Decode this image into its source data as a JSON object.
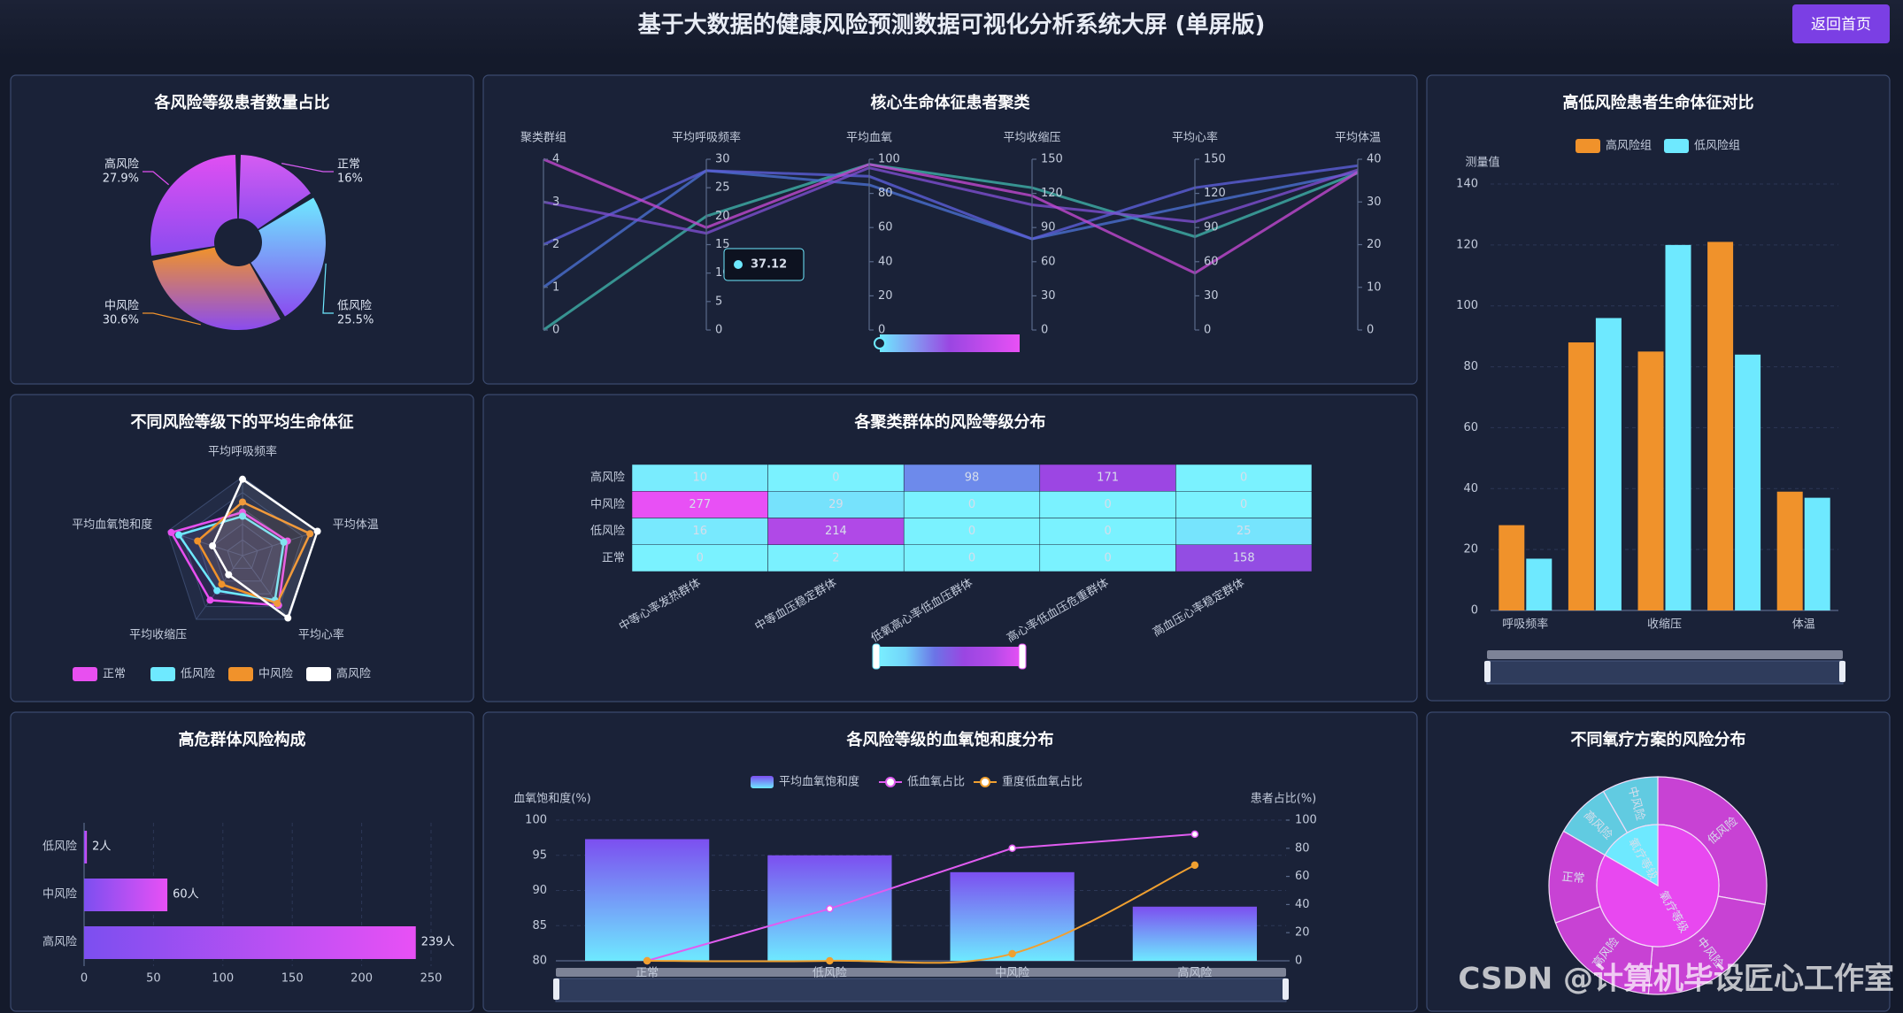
{
  "header": {
    "title": "基于大数据的健康风险预测数据可视化分析系统大屏 (单屏版)",
    "button": "返回首页"
  },
  "watermark": "CSDN @计算机毕设匠心工作室",
  "chart_data": [
    {
      "type": "pie",
      "title": "各风险等级患者数量占比",
      "categories": [
        "正常",
        "低风险",
        "中风险",
        "高风险"
      ],
      "values": [
        16,
        25.5,
        30.6,
        27.9
      ],
      "value_labels": [
        "16%",
        "25.5%",
        "30.6%",
        "27.9%"
      ],
      "colors": [
        "#d65cf2",
        "#6ee9ff",
        "#f0922b",
        "#e04ff2"
      ]
    },
    {
      "type": "parallel",
      "title": "核心生命体征患者聚类",
      "axes": [
        {
          "name": "聚类群组",
          "lim": [
            0,
            4
          ],
          "ticks": [
            0,
            1,
            2,
            3,
            4
          ]
        },
        {
          "name": "平均呼吸频率",
          "lim": [
            0,
            30
          ],
          "ticks": [
            0,
            5,
            10,
            15,
            20,
            25,
            30
          ]
        },
        {
          "name": "平均血氧",
          "lim": [
            0,
            100
          ],
          "ticks": [
            0,
            20,
            40,
            60,
            80,
            100
          ]
        },
        {
          "name": "平均收缩压",
          "lim": [
            0,
            150
          ],
          "ticks": [
            0,
            30,
            60,
            90,
            120,
            150
          ]
        },
        {
          "name": "平均心率",
          "lim": [
            0,
            150
          ],
          "ticks": [
            0,
            30,
            60,
            90,
            120,
            150
          ]
        },
        {
          "name": "平均体温",
          "lim": [
            0,
            40
          ],
          "ticks": [
            0,
            10,
            20,
            30,
            40
          ]
        }
      ],
      "series": [
        {
          "color": "#3fb0a8",
          "values": [
            0,
            20,
            97,
            125,
            82,
            36.8
          ]
        },
        {
          "color": "#4a6fd0",
          "values": [
            1,
            28,
            85,
            80,
            110,
            37
          ]
        },
        {
          "color": "#5b5fd8",
          "values": [
            2,
            28,
            90,
            80,
            125,
            38.5
          ]
        },
        {
          "color": "#7d4fd0",
          "values": [
            3,
            17,
            95,
            110,
            95,
            37.5
          ]
        },
        {
          "color": "#c048d0",
          "values": [
            4,
            18,
            97,
            118,
            50,
            37
          ]
        }
      ],
      "tooltip_value": 37.12
    },
    {
      "type": "bar",
      "title": "高低风险患者生命体征对比",
      "y_label": "测量值",
      "categories": [
        "呼吸频率",
        null,
        "收缩压",
        null,
        "体温"
      ],
      "series": [
        {
          "name": "高风险组",
          "color": "#f0922b",
          "values": [
            28,
            88,
            85,
            121,
            39
          ]
        },
        {
          "name": "低风险组",
          "color": "#6ee9ff",
          "values": [
            17,
            96,
            120,
            84,
            37
          ]
        }
      ],
      "ylim": [
        0,
        140
      ],
      "yticks": [
        0,
        20,
        40,
        60,
        80,
        100,
        120,
        140
      ],
      "grid": true
    },
    {
      "type": "radar",
      "title": "不同风险等级下的平均生命体征",
      "indicators": [
        "平均呼吸频率",
        "平均体温",
        "平均心率",
        "平均收缩压",
        "平均血氧饱和度"
      ],
      "rlim": [
        0,
        100
      ],
      "series": [
        {
          "name": "正常",
          "color": "#e84ff0",
          "values": [
            55,
            60,
            78,
            70,
            95
          ]
        },
        {
          "name": "低风险",
          "color": "#6ee9ff",
          "values": [
            50,
            55,
            70,
            55,
            85
          ]
        },
        {
          "name": "中风险",
          "color": "#f0922b",
          "values": [
            68,
            90,
            75,
            45,
            60
          ]
        },
        {
          "name": "高风险",
          "color": "#ffffff",
          "values": [
            97,
            100,
            98,
            30,
            40
          ]
        }
      ]
    },
    {
      "type": "heatmap",
      "title": "各聚类群体的风险等级分布",
      "x_categories": [
        "中等心率发热群体",
        "中等血压稳定群体",
        "低氧高心率低血压群体",
        "高心率低血压危重群体",
        "高血压心率稳定群体"
      ],
      "y_categories": [
        "高风险",
        "中风险",
        "低风险",
        "正常"
      ],
      "values": [
        [
          10,
          0,
          98,
          171,
          0
        ],
        [
          277,
          29,
          0,
          0,
          0
        ],
        [
          16,
          214,
          0,
          0,
          25
        ],
        [
          0,
          2,
          0,
          0,
          158
        ]
      ],
      "color_range": [
        "#7af2ff",
        "#72d3fa",
        "#6b74e6",
        "#9a46e2",
        "#b34ae8",
        "#e850f5"
      ]
    },
    {
      "type": "bar",
      "orientation": "horizontal",
      "title": "高危群体风险构成",
      "categories": [
        "低风险",
        "中风险",
        "高风险"
      ],
      "values": [
        2,
        60,
        239
      ],
      "value_labels": [
        "2人",
        "60人",
        "239人"
      ],
      "xlim": [
        0,
        250
      ],
      "xticks": [
        0,
        50,
        100,
        150,
        200,
        250
      ],
      "grid": true
    },
    {
      "type": "combo",
      "title": "各风险等级的血氧饱和度分布",
      "y_label": "血氧饱和度(%)",
      "y2_label": "患者占比(%)",
      "categories": [
        "正常",
        "低风险",
        "中风险",
        "高风险"
      ],
      "series": [
        {
          "name": "平均血氧饱和度",
          "type": "bar",
          "values": [
            97.3,
            95,
            92.6,
            87.7
          ]
        },
        {
          "name": "低血氧占比",
          "type": "line",
          "axis": "y2",
          "color": "#e05cf0",
          "values": [
            0,
            37,
            80,
            90
          ]
        },
        {
          "name": "重度低血氧占比",
          "type": "line",
          "axis": "y2",
          "color": "#f0a030",
          "smooth": true,
          "values": [
            0,
            0,
            5,
            68
          ]
        }
      ],
      "ylim": [
        80,
        100
      ],
      "yticks": [
        80,
        85,
        90,
        95,
        100
      ],
      "y2lim": [
        0,
        100
      ],
      "y2ticks": [
        0,
        20,
        40,
        60,
        80,
        100
      ],
      "grid": true
    },
    {
      "type": "sunburst",
      "title": "不同氧疗方案的风险分布",
      "data": [
        {
          "name": "氧疗等级",
          "color": "#e848f0",
          "children": [
            {
              "name": "低风险",
              "value": 100
            },
            {
              "name": "中风险",
              "value": 85
            },
            {
              "name": "高风险",
              "value": 65
            },
            {
              "name": "正常",
              "value": 50
            }
          ]
        },
        {
          "name": "氧疗等级",
          "color": "#6ee9ff",
          "children": [
            {
              "name": "高风险",
              "value": 30
            },
            {
              "name": "中风险",
              "value": 30
            }
          ]
        }
      ]
    }
  ]
}
